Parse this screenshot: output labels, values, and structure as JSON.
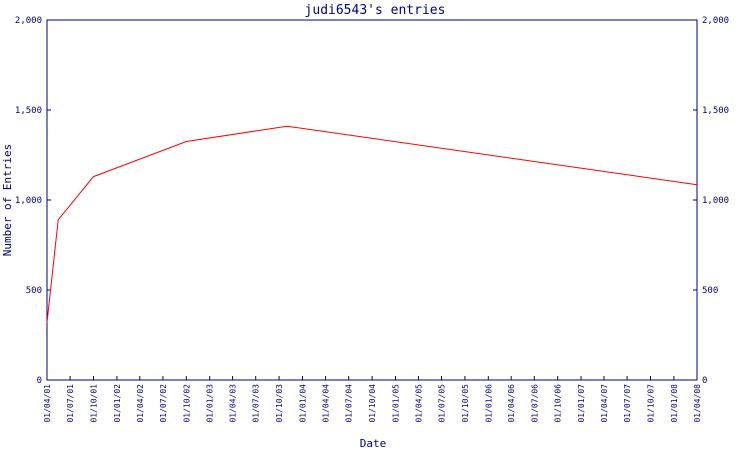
{
  "chart_data": {
    "type": "line",
    "title": "judi6543's entries",
    "xlabel": "Date",
    "ylabel": "Number of Entries",
    "ylim": [
      0,
      2000
    ],
    "yticks": [
      "0",
      "500",
      "1,000",
      "1,500",
      "2,000"
    ],
    "ytick_values": [
      0,
      500,
      1000,
      1500,
      2000
    ],
    "grid": false,
    "legend": "none",
    "colors": {
      "line": "#ff0000",
      "axis": "#000080",
      "text": "#000080"
    },
    "x_tick_labels": [
      "01/04/01",
      "01/07/01",
      "01/10/01",
      "01/01/02",
      "01/04/02",
      "01/07/02",
      "01/10/02",
      "01/01/03",
      "01/04/03",
      "01/07/03",
      "01/10/03",
      "01/01/04",
      "01/04/04",
      "01/07/04",
      "01/10/04",
      "01/01/05",
      "01/04/05",
      "01/07/05",
      "01/10/05",
      "01/01/06",
      "01/04/06",
      "01/07/06",
      "01/10/06",
      "01/01/07",
      "01/04/07",
      "01/07/07",
      "01/10/07",
      "01/01/08",
      "01/04/08"
    ],
    "series": [
      {
        "x": [
          "01/04/01",
          "15/05/01",
          "01/10/01",
          "01/10/02",
          "01/11/03",
          "01/04/08"
        ],
        "values": [
          320,
          890,
          1130,
          1325,
          1410,
          1085
        ]
      }
    ]
  }
}
